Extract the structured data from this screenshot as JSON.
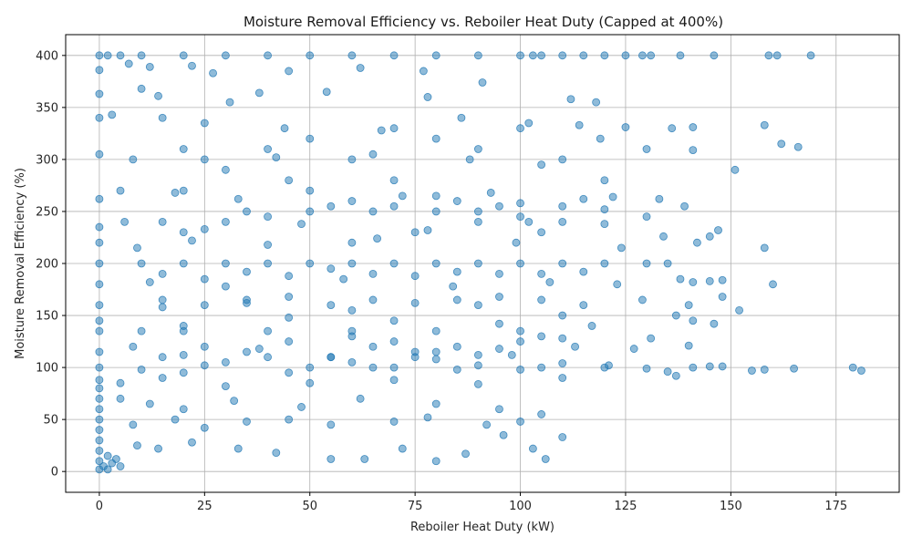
{
  "chart_data": {
    "type": "scatter",
    "title": "Moisture Removal Efficiency vs. Reboiler Heat Duty  (Capped at 400%)",
    "xlabel": "Reboiler Heat Duty (kW)",
    "ylabel": "Moisture Removal Efficiency (%)",
    "xlim": [
      -8,
      190
    ],
    "ylim": [
      -20,
      420
    ],
    "xticks": [
      0,
      25,
      50,
      75,
      100,
      125,
      150,
      175
    ],
    "yticks": [
      0,
      50,
      100,
      150,
      200,
      250,
      300,
      350,
      400
    ],
    "grid": true,
    "legend": "none",
    "point_color": "#1f77b4",
    "point_alpha": 0.5,
    "points": [
      [
        0,
        400
      ],
      [
        2,
        400
      ],
      [
        5,
        400
      ],
      [
        10,
        400
      ],
      [
        20,
        400
      ],
      [
        30,
        400
      ],
      [
        40,
        400
      ],
      [
        50,
        400
      ],
      [
        60,
        400
      ],
      [
        70,
        400
      ],
      [
        80,
        400
      ],
      [
        90,
        400
      ],
      [
        100,
        400
      ],
      [
        103,
        400
      ],
      [
        105,
        400
      ],
      [
        110,
        400
      ],
      [
        115,
        400
      ],
      [
        120,
        400
      ],
      [
        125,
        400
      ],
      [
        129,
        400
      ],
      [
        131,
        400
      ],
      [
        138,
        400
      ],
      [
        146,
        400
      ],
      [
        159,
        400
      ],
      [
        161,
        400
      ],
      [
        169,
        400
      ],
      [
        0,
        200
      ],
      [
        10,
        200
      ],
      [
        20,
        200
      ],
      [
        30,
        200
      ],
      [
        40,
        200
      ],
      [
        50,
        200
      ],
      [
        60,
        200
      ],
      [
        70,
        200
      ],
      [
        80,
        200
      ],
      [
        90,
        200
      ],
      [
        100,
        200
      ],
      [
        110,
        200
      ],
      [
        120,
        200
      ],
      [
        130,
        200
      ],
      [
        135,
        200
      ],
      [
        0,
        135
      ],
      [
        10,
        135
      ],
      [
        20,
        135
      ],
      [
        40,
        135
      ],
      [
        60,
        135
      ],
      [
        80,
        135
      ],
      [
        100,
        135
      ],
      [
        0,
        2
      ],
      [
        0,
        10
      ],
      [
        0,
        20
      ],
      [
        0,
        30
      ],
      [
        0,
        40
      ],
      [
        0,
        50
      ],
      [
        0,
        60
      ],
      [
        0,
        70
      ],
      [
        0,
        80
      ],
      [
        1,
        5
      ],
      [
        2,
        2
      ],
      [
        3,
        8
      ],
      [
        4,
        12
      ],
      [
        5,
        5
      ],
      [
        2,
        15
      ],
      [
        7,
        392
      ],
      [
        12,
        389
      ],
      [
        22,
        390
      ],
      [
        0,
        386
      ],
      [
        27,
        383
      ],
      [
        45,
        385
      ],
      [
        62,
        388
      ],
      [
        77,
        385
      ],
      [
        0,
        363
      ],
      [
        10,
        368
      ],
      [
        14,
        361
      ],
      [
        31,
        355
      ],
      [
        38,
        364
      ],
      [
        54,
        365
      ],
      [
        78,
        360
      ],
      [
        91,
        374
      ],
      [
        112,
        358
      ],
      [
        118,
        355
      ],
      [
        0,
        340
      ],
      [
        3,
        343
      ],
      [
        15,
        340
      ],
      [
        25,
        335
      ],
      [
        44,
        330
      ],
      [
        67,
        328
      ],
      [
        86,
        340
      ],
      [
        102,
        335
      ],
      [
        114,
        333
      ],
      [
        125,
        331
      ],
      [
        136,
        330
      ],
      [
        141,
        331
      ],
      [
        158,
        333
      ],
      [
        0,
        305
      ],
      [
        8,
        300
      ],
      [
        20,
        310
      ],
      [
        42,
        302
      ],
      [
        65,
        305
      ],
      [
        88,
        300
      ],
      [
        105,
        295
      ],
      [
        119,
        320
      ],
      [
        130,
        310
      ],
      [
        141,
        309
      ],
      [
        151,
        290
      ],
      [
        162,
        315
      ],
      [
        166,
        312
      ],
      [
        0,
        262
      ],
      [
        5,
        270
      ],
      [
        18,
        268
      ],
      [
        33,
        262
      ],
      [
        50,
        270
      ],
      [
        72,
        265
      ],
      [
        93,
        268
      ],
      [
        115,
        262
      ],
      [
        122,
        264
      ],
      [
        133,
        262
      ],
      [
        139,
        255
      ],
      [
        147,
        232
      ],
      [
        0,
        235
      ],
      [
        6,
        240
      ],
      [
        25,
        233
      ],
      [
        48,
        238
      ],
      [
        78,
        232
      ],
      [
        102,
        240
      ],
      [
        120,
        238
      ],
      [
        130,
        245
      ],
      [
        0,
        220
      ],
      [
        9,
        215
      ],
      [
        22,
        222
      ],
      [
        40,
        218
      ],
      [
        66,
        224
      ],
      [
        99,
        220
      ],
      [
        124,
        215
      ],
      [
        134,
        226
      ],
      [
        142,
        220
      ],
      [
        145,
        226
      ],
      [
        158,
        215
      ],
      [
        0,
        180
      ],
      [
        12,
        182
      ],
      [
        30,
        178
      ],
      [
        58,
        185
      ],
      [
        84,
        178
      ],
      [
        107,
        182
      ],
      [
        123,
        180
      ],
      [
        138,
        185
      ],
      [
        141,
        182
      ],
      [
        145,
        183
      ],
      [
        148,
        184
      ],
      [
        160,
        180
      ],
      [
        0,
        160
      ],
      [
        15,
        158
      ],
      [
        35,
        162
      ],
      [
        60,
        155
      ],
      [
        90,
        160
      ],
      [
        110,
        150
      ],
      [
        129,
        165
      ],
      [
        140,
        160
      ],
      [
        148,
        168
      ],
      [
        152,
        155
      ],
      [
        0,
        145
      ],
      [
        20,
        140
      ],
      [
        45,
        148
      ],
      [
        70,
        145
      ],
      [
        95,
        142
      ],
      [
        117,
        140
      ],
      [
        137,
        150
      ],
      [
        141,
        145
      ],
      [
        146,
        142
      ],
      [
        0,
        115
      ],
      [
        8,
        120
      ],
      [
        20,
        112
      ],
      [
        38,
        118
      ],
      [
        55,
        110
      ],
      [
        75,
        115
      ],
      [
        98,
        112
      ],
      [
        113,
        120
      ],
      [
        127,
        118
      ],
      [
        131,
        128
      ],
      [
        140,
        121
      ],
      [
        0,
        100
      ],
      [
        10,
        98
      ],
      [
        25,
        102
      ],
      [
        45,
        95
      ],
      [
        65,
        100
      ],
      [
        85,
        98
      ],
      [
        105,
        100
      ],
      [
        121,
        102
      ],
      [
        130,
        99
      ],
      [
        135,
        96
      ],
      [
        141,
        100
      ],
      [
        145,
        101
      ],
      [
        148,
        101
      ],
      [
        155,
        97
      ],
      [
        158,
        98
      ],
      [
        165,
        99
      ],
      [
        179,
        100
      ],
      [
        181,
        97
      ],
      [
        0,
        88
      ],
      [
        5,
        85
      ],
      [
        15,
        90
      ],
      [
        30,
        82
      ],
      [
        50,
        85
      ],
      [
        70,
        88
      ],
      [
        90,
        84
      ],
      [
        110,
        90
      ],
      [
        137,
        92
      ],
      [
        5,
        70
      ],
      [
        12,
        65
      ],
      [
        20,
        60
      ],
      [
        32,
        68
      ],
      [
        48,
        62
      ],
      [
        62,
        70
      ],
      [
        80,
        65
      ],
      [
        95,
        60
      ],
      [
        105,
        55
      ],
      [
        8,
        45
      ],
      [
        18,
        50
      ],
      [
        25,
        42
      ],
      [
        35,
        48
      ],
      [
        45,
        50
      ],
      [
        55,
        45
      ],
      [
        70,
        48
      ],
      [
        78,
        52
      ],
      [
        92,
        45
      ],
      [
        100,
        48
      ],
      [
        9,
        25
      ],
      [
        14,
        22
      ],
      [
        22,
        28
      ],
      [
        33,
        22
      ],
      [
        42,
        18
      ],
      [
        55,
        12
      ],
      [
        63,
        12
      ],
      [
        72,
        22
      ],
      [
        80,
        10
      ],
      [
        87,
        17
      ],
      [
        96,
        35
      ],
      [
        103,
        22
      ],
      [
        106,
        12
      ],
      [
        110,
        33
      ],
      [
        15,
        240
      ],
      [
        25,
        300
      ],
      [
        35,
        250
      ],
      [
        45,
        280
      ],
      [
        55,
        255
      ],
      [
        60,
        220
      ],
      [
        65,
        250
      ],
      [
        70,
        280
      ],
      [
        75,
        230
      ],
      [
        80,
        250
      ],
      [
        85,
        260
      ],
      [
        90,
        240
      ],
      [
        95,
        255
      ],
      [
        100,
        245
      ],
      [
        105,
        230
      ],
      [
        110,
        240
      ],
      [
        15,
        110
      ],
      [
        25,
        120
      ],
      [
        35,
        115
      ],
      [
        45,
        125
      ],
      [
        55,
        110
      ],
      [
        60,
        130
      ],
      [
        65,
        120
      ],
      [
        70,
        125
      ],
      [
        75,
        110
      ],
      [
        80,
        115
      ],
      [
        85,
        120
      ],
      [
        90,
        112
      ],
      [
        95,
        118
      ],
      [
        100,
        125
      ],
      [
        105,
        130
      ],
      [
        110,
        128
      ],
      [
        15,
        190
      ],
      [
        25,
        185
      ],
      [
        35,
        192
      ],
      [
        45,
        188
      ],
      [
        55,
        195
      ],
      [
        65,
        190
      ],
      [
        75,
        188
      ],
      [
        85,
        192
      ],
      [
        95,
        190
      ],
      [
        105,
        190
      ],
      [
        115,
        192
      ],
      [
        15,
        165
      ],
      [
        25,
        160
      ],
      [
        35,
        165
      ],
      [
        45,
        168
      ],
      [
        55,
        160
      ],
      [
        65,
        165
      ],
      [
        75,
        162
      ],
      [
        85,
        165
      ],
      [
        95,
        168
      ],
      [
        105,
        165
      ],
      [
        115,
        160
      ],
      [
        20,
        270
      ],
      [
        30,
        290
      ],
      [
        40,
        310
      ],
      [
        50,
        320
      ],
      [
        60,
        300
      ],
      [
        70,
        330
      ],
      [
        80,
        320
      ],
      [
        90,
        310
      ],
      [
        100,
        330
      ],
      [
        110,
        300
      ],
      [
        120,
        280
      ],
      [
        20,
        230
      ],
      [
        30,
        240
      ],
      [
        40,
        245
      ],
      [
        50,
        250
      ],
      [
        60,
        260
      ],
      [
        70,
        255
      ],
      [
        80,
        265
      ],
      [
        90,
        250
      ],
      [
        100,
        258
      ],
      [
        110,
        255
      ],
      [
        120,
        252
      ],
      [
        20,
        95
      ],
      [
        30,
        105
      ],
      [
        40,
        110
      ],
      [
        50,
        100
      ],
      [
        60,
        105
      ],
      [
        70,
        100
      ],
      [
        80,
        108
      ],
      [
        90,
        102
      ],
      [
        100,
        98
      ],
      [
        110,
        104
      ],
      [
        120,
        100
      ]
    ]
  }
}
